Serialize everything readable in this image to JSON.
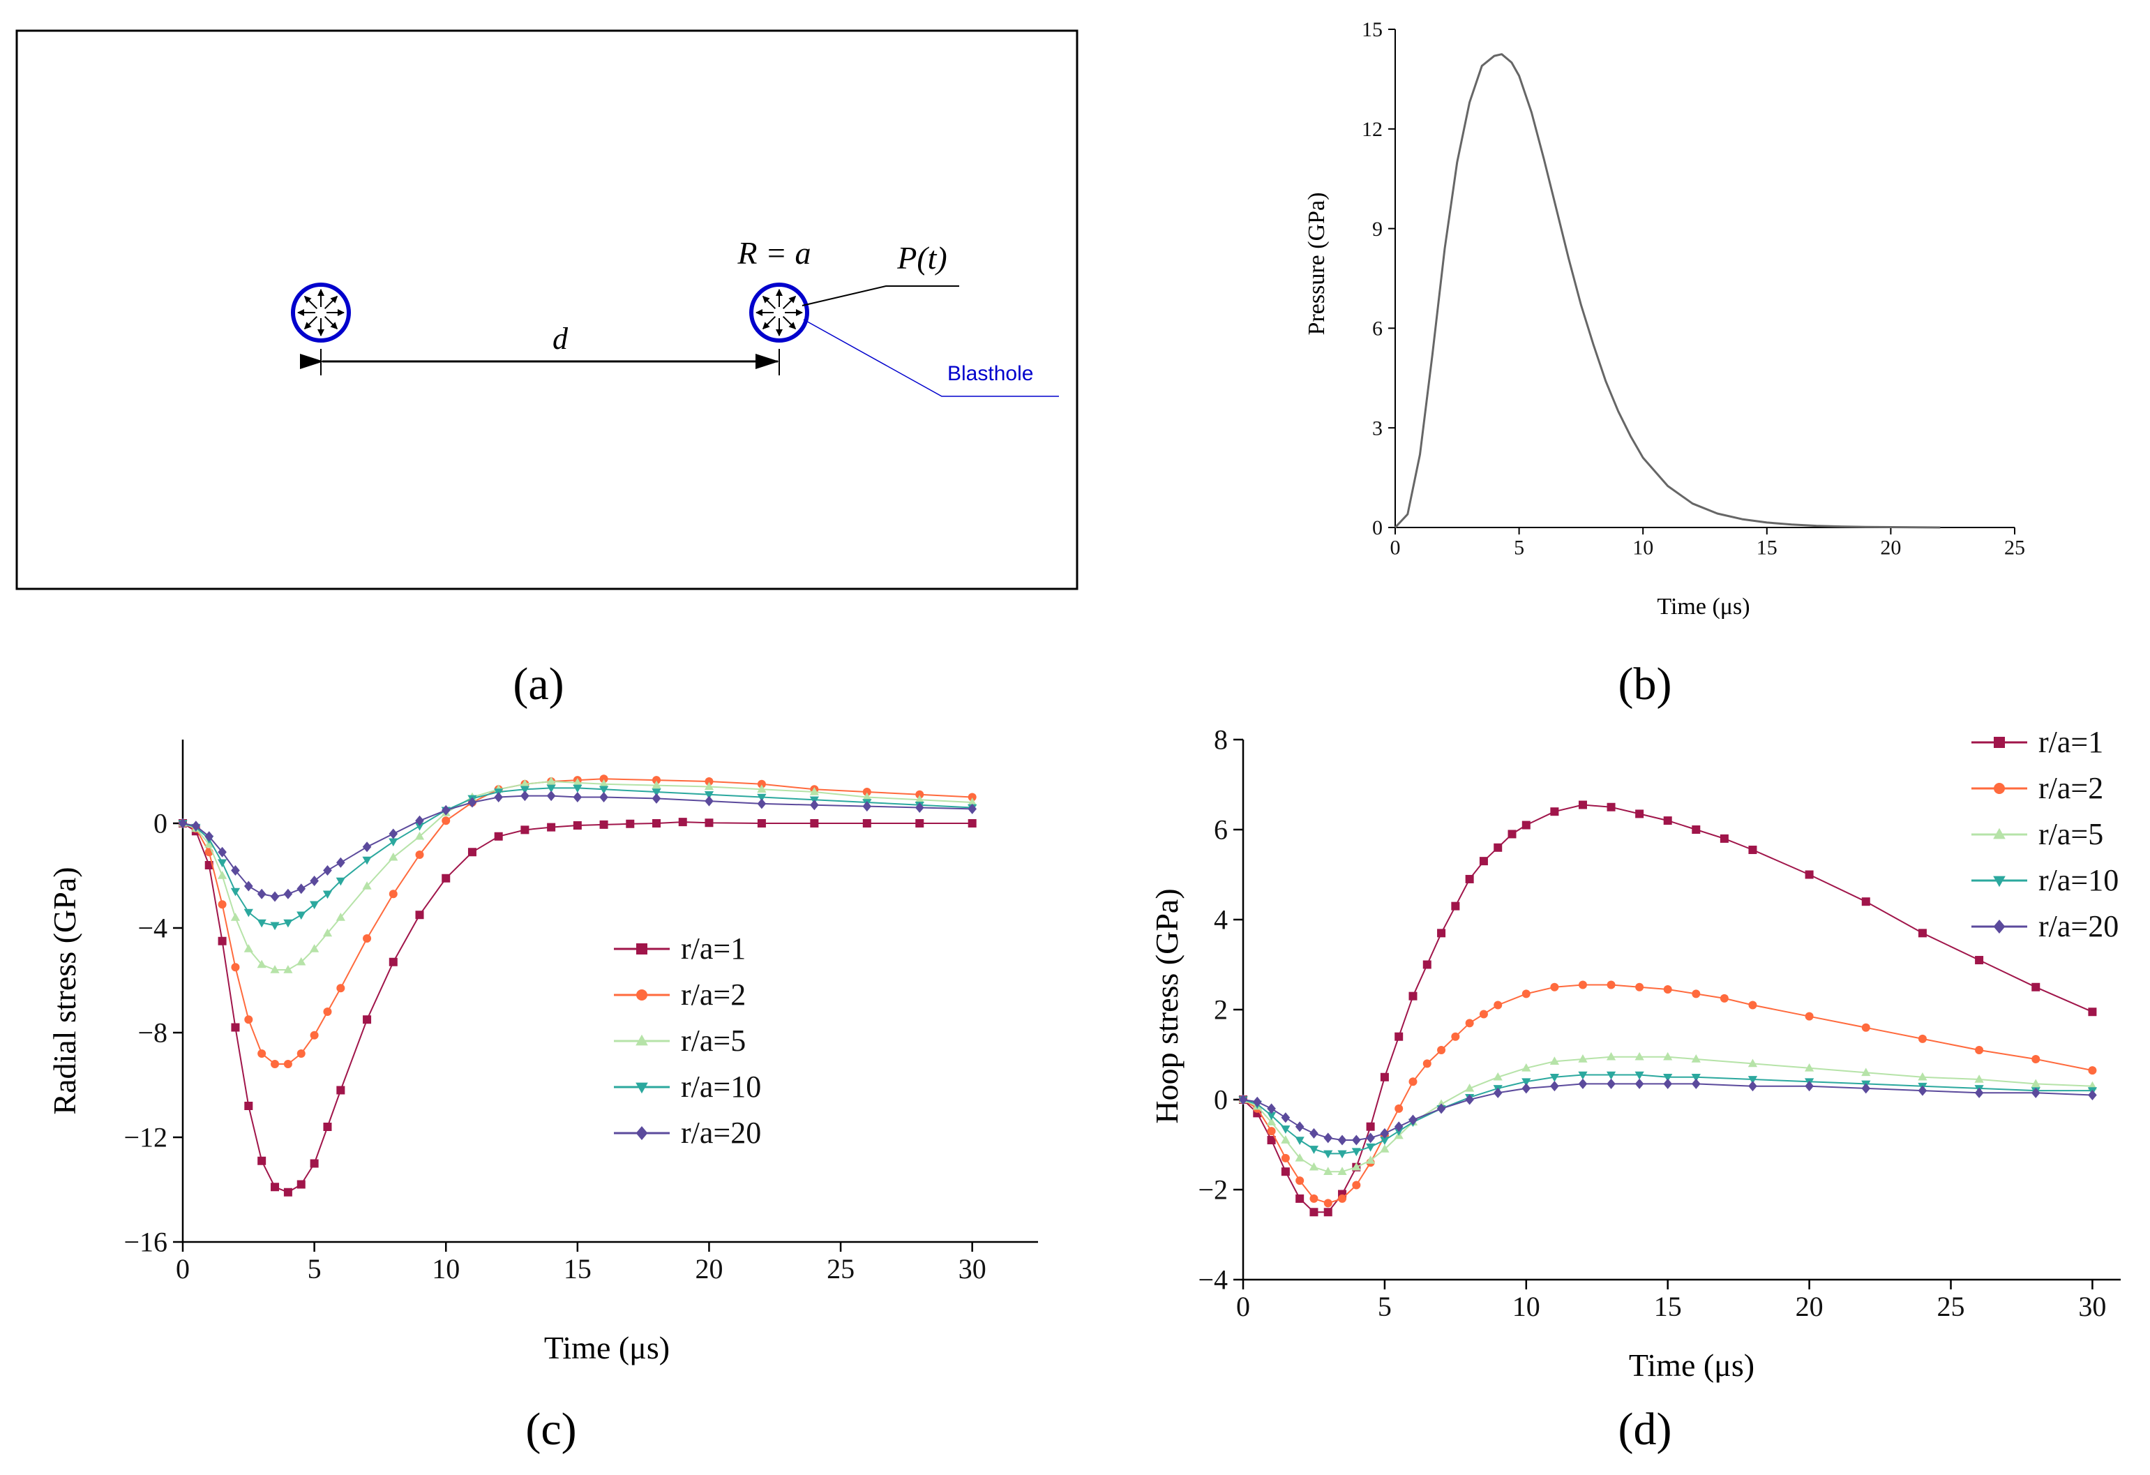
{
  "panel_labels": {
    "a": "(a)",
    "b": "(b)",
    "c": "(c)",
    "d": "(d)"
  },
  "diagram": {
    "hole_label": "R = a",
    "pressure_label": "P(t)",
    "distance_label": "d",
    "blasthole_label": "Blasthole"
  },
  "colors": {
    "hole_outline": "#0000cc",
    "blasthole_label": "#0000cc",
    "r1": "#a0154a",
    "r2": "#ff6a3d",
    "r5": "#b6e3a8",
    "r10": "#2ba89e",
    "r20": "#5b4a9c"
  },
  "chart_data": [
    {
      "id": "b",
      "type": "line",
      "title": "",
      "xlabel": "Time (μs)",
      "ylabel": "Pressure (GPa)",
      "xlim": [
        0,
        25
      ],
      "ylim": [
        0,
        15
      ],
      "xticks": [
        0,
        5,
        10,
        15,
        20,
        25
      ],
      "yticks": [
        0,
        3,
        6,
        9,
        12,
        15
      ],
      "grid": false,
      "series": [
        {
          "x": [
            0,
            0.5,
            1,
            1.5,
            2,
            2.5,
            3,
            3.5,
            4,
            4.3,
            4.7,
            5,
            5.5,
            6,
            6.5,
            7,
            7.5,
            8,
            8.5,
            9,
            9.5,
            10,
            11,
            12,
            13,
            14,
            15,
            16,
            17,
            18,
            19,
            20,
            21,
            22
          ],
          "y": [
            0,
            0.4,
            2.2,
            5.2,
            8.4,
            11.0,
            12.8,
            13.9,
            14.2,
            14.25,
            14.0,
            13.6,
            12.5,
            11.1,
            9.6,
            8.1,
            6.7,
            5.5,
            4.4,
            3.5,
            2.75,
            2.1,
            1.25,
            0.72,
            0.42,
            0.25,
            0.15,
            0.09,
            0.05,
            0.03,
            0.015,
            0.01,
            0.005,
            0
          ]
        }
      ]
    },
    {
      "id": "c",
      "type": "line",
      "title": "",
      "xlabel": "Time (μs)",
      "ylabel": "Radial stress (GPa)",
      "xlim": [
        0,
        32.5
      ],
      "ylim": [
        -16,
        3.2
      ],
      "xticks": [
        0,
        5,
        10,
        15,
        20,
        25,
        30
      ],
      "yticks": [
        0,
        -4,
        -8,
        -12,
        -16
      ],
      "ytick_labels": [
        "0",
        "−4",
        "−8",
        "−12",
        "−16"
      ],
      "grid": false,
      "legend_position": "center-right",
      "series": [
        {
          "name": "r/a=1",
          "marker": "square",
          "color_key": "r1",
          "x": [
            0,
            0.5,
            1,
            1.5,
            2,
            2.5,
            3,
            3.5,
            4,
            4.5,
            5,
            5.5,
            6,
            7,
            8,
            9,
            10,
            11,
            12,
            13,
            14,
            15,
            16,
            17,
            18,
            19,
            20,
            22,
            24,
            26,
            28,
            30
          ],
          "y": [
            0,
            -0.3,
            -1.6,
            -4.5,
            -7.8,
            -10.8,
            -12.9,
            -13.9,
            -14.1,
            -13.8,
            -13.0,
            -11.6,
            -10.2,
            -7.5,
            -5.3,
            -3.5,
            -2.1,
            -1.1,
            -0.5,
            -0.25,
            -0.15,
            -0.08,
            -0.05,
            -0.02,
            0,
            0.05,
            0.02,
            0,
            0,
            0,
            0,
            0
          ]
        },
        {
          "name": "r/a=2",
          "marker": "circle",
          "color_key": "r2",
          "x": [
            0,
            0.5,
            1,
            1.5,
            2,
            2.5,
            3,
            3.5,
            4,
            4.5,
            5,
            5.5,
            6,
            7,
            8,
            9,
            10,
            11,
            12,
            13,
            14,
            15,
            16,
            18,
            20,
            22,
            24,
            26,
            28,
            30
          ],
          "y": [
            0,
            -0.2,
            -1.1,
            -3.1,
            -5.5,
            -7.5,
            -8.8,
            -9.2,
            -9.2,
            -8.8,
            -8.1,
            -7.2,
            -6.3,
            -4.4,
            -2.7,
            -1.2,
            0.1,
            0.8,
            1.3,
            1.5,
            1.6,
            1.65,
            1.7,
            1.65,
            1.6,
            1.5,
            1.3,
            1.2,
            1.1,
            1.0
          ]
        },
        {
          "name": "r/a=5",
          "marker": "triangle-up",
          "color_key": "r5",
          "x": [
            0,
            0.5,
            1,
            1.5,
            2,
            2.5,
            3,
            3.5,
            4,
            4.5,
            5,
            5.5,
            6,
            7,
            8,
            9,
            10,
            11,
            12,
            13,
            14,
            15,
            16,
            18,
            20,
            22,
            24,
            26,
            28,
            30
          ],
          "y": [
            0,
            -0.2,
            -0.8,
            -2.0,
            -3.6,
            -4.8,
            -5.4,
            -5.6,
            -5.6,
            -5.3,
            -4.8,
            -4.2,
            -3.6,
            -2.4,
            -1.3,
            -0.5,
            0.4,
            1.0,
            1.3,
            1.5,
            1.6,
            1.55,
            1.5,
            1.45,
            1.4,
            1.3,
            1.2,
            1.0,
            0.9,
            0.8
          ]
        },
        {
          "name": "r/a=10",
          "marker": "triangle-down",
          "color_key": "r10",
          "x": [
            0,
            0.5,
            1,
            1.5,
            2,
            2.5,
            3,
            3.5,
            4,
            4.5,
            5,
            5.5,
            6,
            7,
            8,
            9,
            10,
            11,
            12,
            13,
            14,
            15,
            16,
            18,
            20,
            22,
            24,
            26,
            28,
            30
          ],
          "y": [
            0,
            -0.15,
            -0.6,
            -1.5,
            -2.6,
            -3.4,
            -3.8,
            -3.9,
            -3.8,
            -3.5,
            -3.1,
            -2.7,
            -2.2,
            -1.4,
            -0.7,
            -0.1,
            0.5,
            0.95,
            1.2,
            1.3,
            1.35,
            1.35,
            1.3,
            1.2,
            1.1,
            1.0,
            0.9,
            0.8,
            0.7,
            0.6
          ]
        },
        {
          "name": "r/a=20",
          "marker": "diamond",
          "color_key": "r20",
          "x": [
            0,
            0.5,
            1,
            1.5,
            2,
            2.5,
            3,
            3.5,
            4,
            4.5,
            5,
            5.5,
            6,
            7,
            8,
            9,
            10,
            11,
            12,
            13,
            14,
            15,
            16,
            18,
            20,
            22,
            24,
            26,
            28,
            30
          ],
          "y": [
            0,
            -0.1,
            -0.5,
            -1.1,
            -1.8,
            -2.4,
            -2.7,
            -2.8,
            -2.7,
            -2.5,
            -2.2,
            -1.8,
            -1.5,
            -0.9,
            -0.4,
            0.1,
            0.5,
            0.8,
            1.0,
            1.05,
            1.05,
            1.0,
            1.0,
            0.95,
            0.85,
            0.75,
            0.7,
            0.65,
            0.6,
            0.55
          ]
        }
      ]
    },
    {
      "id": "d",
      "type": "line",
      "title": "",
      "xlabel": "Time (μs)",
      "ylabel": "Hoop stress (GPa)",
      "xlim": [
        0,
        31
      ],
      "ylim": [
        -4,
        8
      ],
      "xticks": [
        0,
        5,
        10,
        15,
        20,
        25,
        30
      ],
      "yticks": [
        -4,
        -2,
        0,
        2,
        4,
        6,
        8
      ],
      "ytick_labels": [
        "−4",
        "−2",
        "0",
        "2",
        "4",
        "6",
        "8"
      ],
      "grid": false,
      "legend_position": "top-right",
      "series": [
        {
          "name": "r/a=1",
          "marker": "square",
          "color_key": "r1",
          "x": [
            0,
            0.5,
            1,
            1.5,
            2,
            2.5,
            3,
            3.5,
            4,
            4.5,
            5,
            5.5,
            6,
            6.5,
            7,
            7.5,
            8,
            8.5,
            9,
            9.5,
            10,
            11,
            12,
            13,
            14,
            15,
            16,
            17,
            18,
            20,
            22,
            24,
            26,
            28,
            30
          ],
          "y": [
            0,
            -0.3,
            -0.9,
            -1.6,
            -2.2,
            -2.5,
            -2.5,
            -2.1,
            -1.5,
            -0.6,
            0.5,
            1.4,
            2.3,
            3.0,
            3.7,
            4.3,
            4.9,
            5.3,
            5.6,
            5.9,
            6.1,
            6.4,
            6.55,
            6.5,
            6.35,
            6.2,
            6.0,
            5.8,
            5.55,
            5.0,
            4.4,
            3.7,
            3.1,
            2.5,
            1.95
          ]
        },
        {
          "name": "r/a=2",
          "marker": "circle",
          "color_key": "r2",
          "x": [
            0,
            0.5,
            1,
            1.5,
            2,
            2.5,
            3,
            3.5,
            4,
            4.5,
            5,
            5.5,
            6,
            6.5,
            7,
            7.5,
            8,
            8.5,
            9,
            10,
            11,
            12,
            13,
            14,
            15,
            16,
            17,
            18,
            20,
            22,
            24,
            26,
            28,
            30
          ],
          "y": [
            0,
            -0.2,
            -0.7,
            -1.3,
            -1.8,
            -2.2,
            -2.3,
            -2.2,
            -1.9,
            -1.4,
            -0.8,
            -0.2,
            0.4,
            0.8,
            1.1,
            1.4,
            1.7,
            1.9,
            2.1,
            2.35,
            2.5,
            2.55,
            2.55,
            2.5,
            2.45,
            2.35,
            2.25,
            2.1,
            1.85,
            1.6,
            1.35,
            1.1,
            0.9,
            0.65
          ]
        },
        {
          "name": "r/a=5",
          "marker": "triangle-up",
          "color_key": "r5",
          "x": [
            0,
            0.5,
            1,
            1.5,
            2,
            2.5,
            3,
            3.5,
            4,
            4.5,
            5,
            5.5,
            6,
            7,
            8,
            9,
            10,
            11,
            12,
            13,
            14,
            15,
            16,
            18,
            20,
            22,
            24,
            26,
            28,
            30
          ],
          "y": [
            0,
            -0.15,
            -0.5,
            -0.9,
            -1.3,
            -1.5,
            -1.6,
            -1.6,
            -1.5,
            -1.35,
            -1.1,
            -0.8,
            -0.5,
            -0.1,
            0.25,
            0.5,
            0.7,
            0.85,
            0.9,
            0.95,
            0.95,
            0.95,
            0.9,
            0.8,
            0.7,
            0.6,
            0.5,
            0.45,
            0.35,
            0.3
          ]
        },
        {
          "name": "r/a=10",
          "marker": "triangle-down",
          "color_key": "r10",
          "x": [
            0,
            0.5,
            1,
            1.5,
            2,
            2.5,
            3,
            3.5,
            4,
            4.5,
            5,
            5.5,
            6,
            7,
            8,
            9,
            10,
            11,
            12,
            13,
            14,
            15,
            16,
            18,
            20,
            22,
            24,
            26,
            28,
            30
          ],
          "y": [
            0,
            -0.1,
            -0.35,
            -0.65,
            -0.9,
            -1.1,
            -1.2,
            -1.2,
            -1.15,
            -1.05,
            -0.9,
            -0.7,
            -0.5,
            -0.2,
            0.05,
            0.25,
            0.4,
            0.5,
            0.55,
            0.55,
            0.55,
            0.5,
            0.5,
            0.45,
            0.4,
            0.35,
            0.3,
            0.25,
            0.2,
            0.2
          ]
        },
        {
          "name": "r/a=20",
          "marker": "diamond",
          "color_key": "r20",
          "x": [
            0,
            0.5,
            1,
            1.5,
            2,
            2.5,
            3,
            3.5,
            4,
            4.5,
            5,
            5.5,
            6,
            7,
            8,
            9,
            10,
            11,
            12,
            13,
            14,
            15,
            16,
            18,
            20,
            22,
            24,
            26,
            28,
            30
          ],
          "y": [
            0,
            -0.05,
            -0.2,
            -0.4,
            -0.6,
            -0.75,
            -0.85,
            -0.9,
            -0.9,
            -0.85,
            -0.75,
            -0.6,
            -0.45,
            -0.2,
            0,
            0.15,
            0.25,
            0.3,
            0.35,
            0.35,
            0.35,
            0.35,
            0.35,
            0.3,
            0.3,
            0.25,
            0.2,
            0.15,
            0.15,
            0.1
          ]
        }
      ]
    }
  ]
}
